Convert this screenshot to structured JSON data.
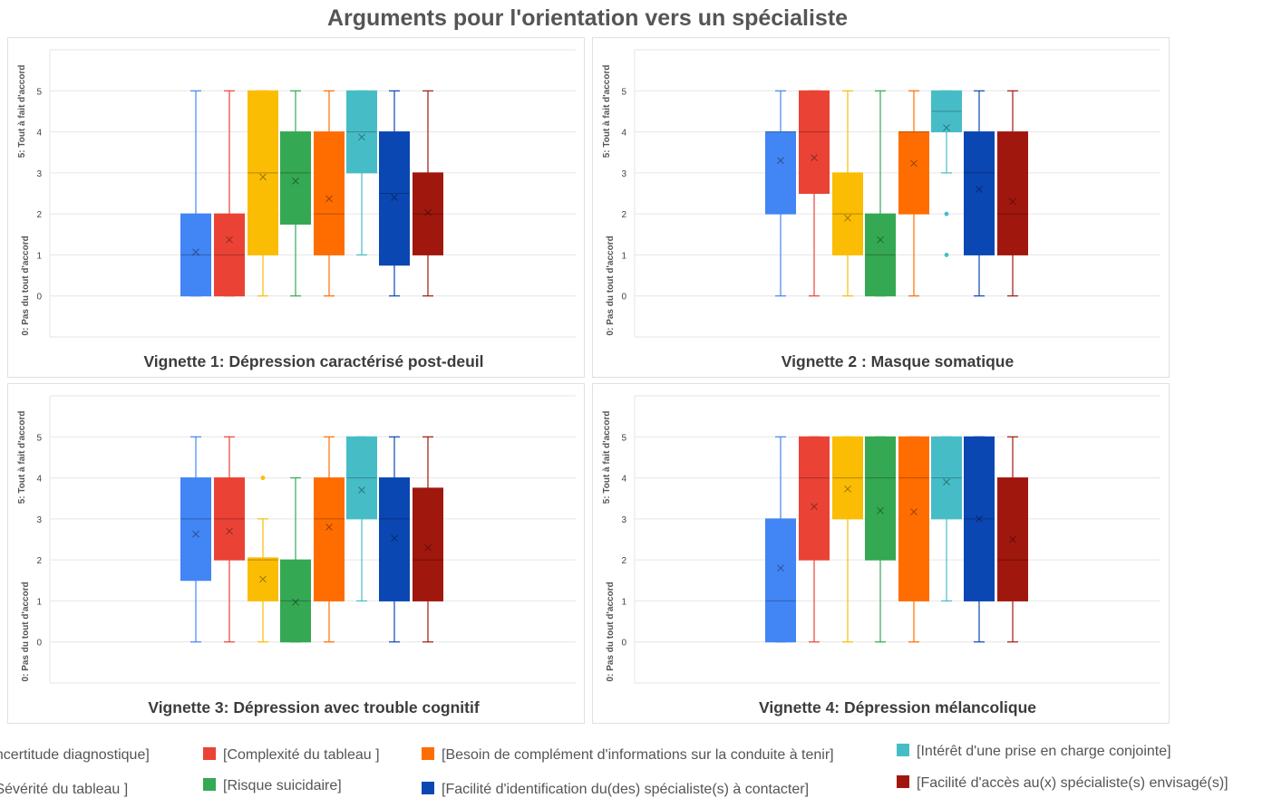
{
  "title": "Arguments pour l'orientation vers un spécialiste",
  "y_top_label": "5: Tout à fait d'accord",
  "y_bottom_label": "0: Pas du tout d'accord",
  "legend": [
    {
      "label": "[Incertitude diagnostique]",
      "color": "#4285F4"
    },
    {
      "label": "[Complexité du tableau ]",
      "color": "#EA4335"
    },
    {
      "label": "[Besoin de complément d'informations sur la conduite à tenir]",
      "color": "#FF6D01"
    },
    {
      "label": "[Intérêt d'une prise en charge conjointe]",
      "color": "#46BDC6"
    },
    {
      "label": "[Sévérité du tableau ]",
      "color": "#FBBC04"
    },
    {
      "label": "[Risque suicidaire]",
      "color": "#34A853"
    },
    {
      "label": "[Facilité d'identification du(des) spécialiste(s) à contacter]",
      "color": "#0B47B3"
    },
    {
      "label": "[Facilité d'accès au(x) spécialiste(s) envisagé(s)]",
      "color": "#A0170E"
    }
  ],
  "chart_data": [
    {
      "type": "box",
      "title": "Vignette 1: Dépression caractérisé post-deuil",
      "ylim": [
        -1,
        6
      ],
      "yticks": [
        0,
        1,
        2,
        3,
        4,
        5
      ],
      "series": [
        {
          "name": "[Incertitude diagnostique]",
          "color": "#4285F4",
          "min": 0,
          "q1": 0,
          "median": 1,
          "q3": 2,
          "max": 5,
          "mean": 1.07,
          "outliers": []
        },
        {
          "name": "[Complexité du tableau ]",
          "color": "#EA4335",
          "min": 0,
          "q1": 0,
          "median": 1,
          "q3": 2,
          "max": 5,
          "mean": 1.37,
          "outliers": []
        },
        {
          "name": "[Sévérité du tableau ]",
          "color": "#FBBC04",
          "min": 0,
          "q1": 1,
          "median": 3,
          "q3": 5,
          "max": 5,
          "mean": 2.9,
          "outliers": []
        },
        {
          "name": "[Risque suicidaire]",
          "color": "#34A853",
          "min": 0,
          "q1": 1.75,
          "median": 3,
          "q3": 4,
          "max": 5,
          "mean": 2.8,
          "outliers": []
        },
        {
          "name": "[Besoin de complément d'informations sur la conduite à tenir]",
          "color": "#FF6D01",
          "min": 0,
          "q1": 1,
          "median": 2,
          "q3": 4,
          "max": 5,
          "mean": 2.37,
          "outliers": []
        },
        {
          "name": "[Intérêt d'une prise en charge conjointe]",
          "color": "#46BDC6",
          "min": 1,
          "q1": 3,
          "median": 4,
          "q3": 5,
          "max": 5,
          "mean": 3.87,
          "outliers": []
        },
        {
          "name": "[Facilité d'identification du(des) spécialiste(s) à contacter]",
          "color": "#0B47B3",
          "min": 0,
          "q1": 0.75,
          "median": 2.5,
          "q3": 4,
          "max": 5,
          "mean": 2.4,
          "outliers": []
        },
        {
          "name": "[Facilité d'accès au(x) spécialiste(s) envisagé(s)]",
          "color": "#A0170E",
          "min": 0,
          "q1": 1,
          "median": 2,
          "q3": 3,
          "max": 5,
          "mean": 2.03,
          "outliers": []
        }
      ]
    },
    {
      "type": "box",
      "title": "Vignette 2 : Masque somatique",
      "ylim": [
        -1,
        6
      ],
      "yticks": [
        0,
        1,
        2,
        3,
        4,
        5
      ],
      "series": [
        {
          "name": "[Incertitude diagnostique]",
          "color": "#4285F4",
          "min": 0,
          "q1": 2,
          "median": 4,
          "q3": 4,
          "max": 5,
          "mean": 3.3,
          "outliers": []
        },
        {
          "name": "[Complexité du tableau ]",
          "color": "#EA4335",
          "min": 0,
          "q1": 2.5,
          "median": 4,
          "q3": 5,
          "max": 5,
          "mean": 3.37,
          "outliers": []
        },
        {
          "name": "[Sévérité du tableau ]",
          "color": "#FBBC04",
          "min": 0,
          "q1": 1,
          "median": 2,
          "q3": 3,
          "max": 5,
          "mean": 1.9,
          "outliers": []
        },
        {
          "name": "[Risque suicidaire]",
          "color": "#34A853",
          "min": 0,
          "q1": 0,
          "median": 1,
          "q3": 2,
          "max": 5,
          "mean": 1.37,
          "outliers": []
        },
        {
          "name": "[Besoin de complément d'informations sur la conduite à tenir]",
          "color": "#FF6D01",
          "min": 0,
          "q1": 2,
          "median": 4,
          "q3": 4,
          "max": 5,
          "mean": 3.23,
          "outliers": []
        },
        {
          "name": "[Intérêt d'une prise en charge conjointe]",
          "color": "#46BDC6",
          "min": 3,
          "q1": 4,
          "median": 4.5,
          "q3": 5,
          "max": 5,
          "mean": 4.1,
          "outliers": [
            2,
            1
          ]
        },
        {
          "name": "[Facilité d'identification du(des) spécialiste(s) à contacter]",
          "color": "#0B47B3",
          "min": 0,
          "q1": 1,
          "median": 3,
          "q3": 4,
          "max": 5,
          "mean": 2.6,
          "outliers": []
        },
        {
          "name": "[Facilité d'accès au(x) spécialiste(s) envisagé(s)]",
          "color": "#A0170E",
          "min": 0,
          "q1": 1,
          "median": 2,
          "q3": 4,
          "max": 5,
          "mean": 2.3,
          "outliers": []
        }
      ]
    },
    {
      "type": "box",
      "title": "Vignette 3: Dépression avec trouble cognitif",
      "ylim": [
        -1,
        6
      ],
      "yticks": [
        0,
        1,
        2,
        3,
        4,
        5
      ],
      "series": [
        {
          "name": "[Incertitude diagnostique]",
          "color": "#4285F4",
          "min": 0,
          "q1": 1.5,
          "median": 3,
          "q3": 4,
          "max": 5,
          "mean": 2.63,
          "outliers": []
        },
        {
          "name": "[Complexité du tableau ]",
          "color": "#EA4335",
          "min": 0,
          "q1": 2,
          "median": 3,
          "q3": 4,
          "max": 5,
          "mean": 2.7,
          "outliers": []
        },
        {
          "name": "[Sévérité du tableau ]",
          "color": "#FBBC04",
          "min": 0,
          "q1": 1,
          "median": 2,
          "q3": 2.05,
          "max": 3,
          "mean": 1.53,
          "outliers": [
            4
          ]
        },
        {
          "name": "[Risque suicidaire]",
          "color": "#34A853",
          "min": 0,
          "q1": 0,
          "median": 1,
          "q3": 2,
          "max": 4,
          "mean": 0.97,
          "outliers": []
        },
        {
          "name": "[Besoin de complément d'informations sur la conduite à tenir]",
          "color": "#FF6D01",
          "min": 0,
          "q1": 1,
          "median": 3,
          "q3": 4,
          "max": 5,
          "mean": 2.8,
          "outliers": []
        },
        {
          "name": "[Intérêt d'une prise en charge conjointe]",
          "color": "#46BDC6",
          "min": 1,
          "q1": 3,
          "median": 4,
          "q3": 5,
          "max": 5,
          "mean": 3.7,
          "outliers": []
        },
        {
          "name": "[Facilité d'identification du(des) spécialiste(s) à contacter]",
          "color": "#0B47B3",
          "min": 0,
          "q1": 1,
          "median": 3,
          "q3": 4,
          "max": 5,
          "mean": 2.53,
          "outliers": []
        },
        {
          "name": "[Facilité d'accès au(x) spécialiste(s) envisagé(s)]",
          "color": "#A0170E",
          "min": 0,
          "q1": 1,
          "median": 2,
          "q3": 3.75,
          "max": 5,
          "mean": 2.3,
          "outliers": []
        }
      ]
    },
    {
      "type": "box",
      "title": "Vignette 4: Dépression mélancolique",
      "ylim": [
        -1,
        6
      ],
      "yticks": [
        0,
        1,
        2,
        3,
        4,
        5
      ],
      "series": [
        {
          "name": "[Incertitude diagnostique]",
          "color": "#4285F4",
          "min": 0,
          "q1": 0,
          "median": 1,
          "q3": 3,
          "max": 5,
          "mean": 1.8,
          "outliers": []
        },
        {
          "name": "[Complexité du tableau ]",
          "color": "#EA4335",
          "min": 0,
          "q1": 2,
          "median": 4,
          "q3": 5,
          "max": 5,
          "mean": 3.3,
          "outliers": []
        },
        {
          "name": "[Sévérité du tableau ]",
          "color": "#FBBC04",
          "min": 0,
          "q1": 3,
          "median": 4,
          "q3": 5,
          "max": 5,
          "mean": 3.73,
          "outliers": []
        },
        {
          "name": "[Risque suicidaire]",
          "color": "#34A853",
          "min": 0,
          "q1": 2,
          "median": 4,
          "q3": 5,
          "max": 5,
          "mean": 3.2,
          "outliers": []
        },
        {
          "name": "[Besoin de complément d'informations sur la conduite à tenir]",
          "color": "#FF6D01",
          "min": 0,
          "q1": 1,
          "median": 4,
          "q3": 5,
          "max": 5,
          "mean": 3.17,
          "outliers": []
        },
        {
          "name": "[Intérêt d'une prise en charge conjointe]",
          "color": "#46BDC6",
          "min": 1,
          "q1": 3,
          "median": 4,
          "q3": 5,
          "max": 5,
          "mean": 3.9,
          "outliers": []
        },
        {
          "name": "[Facilité d'identification du(des) spécialiste(s) à contacter]",
          "color": "#0B47B3",
          "min": 0,
          "q1": 1,
          "median": 3,
          "q3": 5,
          "max": 5,
          "mean": 3.0,
          "outliers": []
        },
        {
          "name": "[Facilité d'accès au(x) spécialiste(s) envisagé(s)]",
          "color": "#A0170E",
          "min": 0,
          "q1": 1,
          "median": 2,
          "q3": 4,
          "max": 5,
          "mean": 2.5,
          "outliers": []
        }
      ]
    }
  ]
}
